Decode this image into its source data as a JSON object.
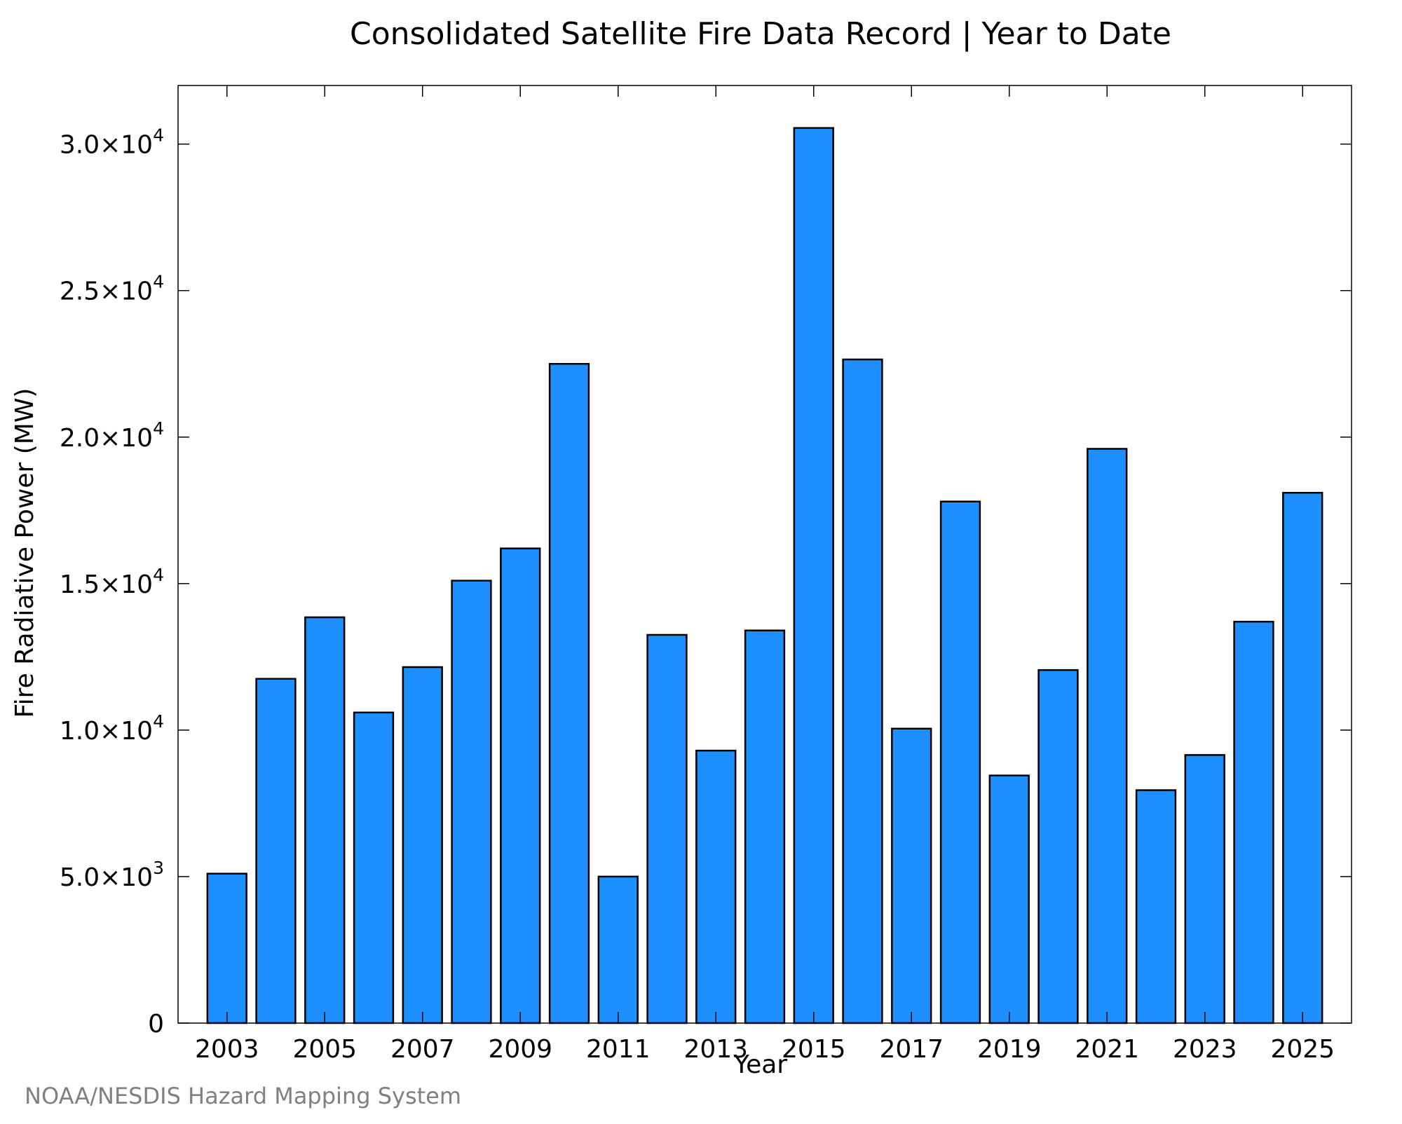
{
  "chart_data": {
    "type": "bar",
    "title": "Consolidated Satellite Fire Data Record | Year to Date",
    "xlabel": "Year",
    "ylabel": "Fire Radiative Power (MW)",
    "source": "NOAA/NESDIS Hazard Mapping System",
    "categories": [
      2003,
      2004,
      2005,
      2006,
      2007,
      2008,
      2009,
      2010,
      2011,
      2012,
      2013,
      2014,
      2015,
      2016,
      2017,
      2018,
      2019,
      2020,
      2021,
      2022,
      2023,
      2024,
      2025
    ],
    "values": [
      5100,
      11750,
      13850,
      10600,
      12150,
      15100,
      16200,
      22500,
      5000,
      13250,
      9300,
      13400,
      30550,
      22650,
      10050,
      17800,
      8450,
      12050,
      19600,
      7950,
      9150,
      13700,
      18100
    ],
    "xticks": [
      2003,
      2005,
      2007,
      2009,
      2011,
      2013,
      2015,
      2017,
      2019,
      2021,
      2023,
      2025
    ],
    "xlim": [
      2002,
      2026
    ],
    "yticks": [
      {
        "value": 0,
        "mantissa": "0",
        "exponent": ""
      },
      {
        "value": 5000,
        "mantissa": "5.0×10",
        "exponent": "3"
      },
      {
        "value": 10000,
        "mantissa": "1.0×10",
        "exponent": "4"
      },
      {
        "value": 15000,
        "mantissa": "1.5×10",
        "exponent": "4"
      },
      {
        "value": 20000,
        "mantissa": "2.0×10",
        "exponent": "4"
      },
      {
        "value": 25000,
        "mantissa": "2.5×10",
        "exponent": "4"
      },
      {
        "value": 30000,
        "mantissa": "3.0×10",
        "exponent": "4"
      }
    ],
    "ylim": [
      0,
      32000
    ],
    "grid": false,
    "colors": {
      "bar_fill": "#1e8fff",
      "bar_stroke": "#000000",
      "axis": "#000000",
      "source_text": "#808080"
    }
  }
}
